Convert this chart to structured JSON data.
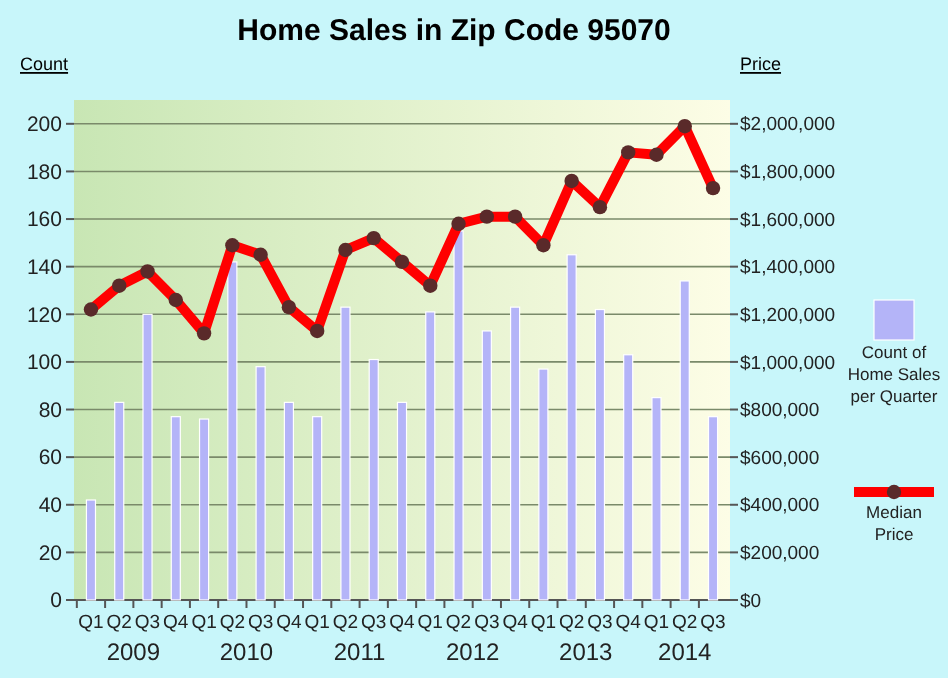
{
  "chart_data": {
    "type": "bar",
    "title": "Home Sales in Zip Code 95070",
    "ylabel": "Count",
    "y2label": "Price",
    "categories": [
      "Q1",
      "Q2",
      "Q3",
      "Q4",
      "Q1",
      "Q2",
      "Q3",
      "Q4",
      "Q1",
      "Q2",
      "Q3",
      "Q4",
      "Q1",
      "Q2",
      "Q3",
      "Q4",
      "Q1",
      "Q2",
      "Q3",
      "Q4",
      "Q1",
      "Q2",
      "Q3"
    ],
    "annotations": [
      "2009",
      "2010",
      "2011",
      "2012",
      "2013",
      "2014"
    ],
    "series": [
      {
        "name": "Count of Home Sales per Quarter",
        "color": "#b4b4f8",
        "values": [
          42,
          83,
          120,
          77,
          76,
          142,
          98,
          83,
          77,
          123,
          101,
          83,
          121,
          155,
          113,
          123,
          97,
          145,
          122,
          103,
          85,
          134,
          77
        ]
      },
      {
        "name": "Median Price",
        "type": "line",
        "axis": "y2",
        "color": "#ff0000",
        "values": [
          1220000,
          1320000,
          1380000,
          1260000,
          1120000,
          1490000,
          1450000,
          1230000,
          1130000,
          1470000,
          1520000,
          1420000,
          1320000,
          1580000,
          1610000,
          1610000,
          1490000,
          1760000,
          1650000,
          1880000,
          1870000,
          1990000,
          1730000
        ]
      }
    ],
    "ylim": [
      0,
      210
    ],
    "yticks": [
      0,
      20,
      40,
      60,
      80,
      100,
      120,
      140,
      160,
      180,
      200
    ],
    "y2lim": [
      0,
      2100000
    ],
    "y2ticks": [
      {
        "value": 0,
        "label": "$0"
      },
      {
        "value": 200000,
        "label": "$200,000"
      },
      {
        "value": 400000,
        "label": "$400,000"
      },
      {
        "value": 600000,
        "label": "$600,000"
      },
      {
        "value": 800000,
        "label": "$800,000"
      },
      {
        "value": 1000000,
        "label": "$1,000,000"
      },
      {
        "value": 1200000,
        "label": "$1,200,000"
      },
      {
        "value": 1400000,
        "label": "$1,400,000"
      },
      {
        "value": 1600000,
        "label": "$1,600,000"
      },
      {
        "value": 1800000,
        "label": "$1,800,000"
      },
      {
        "value": 2000000,
        "label": "$2,000,000"
      }
    ],
    "grid": "y",
    "legend": "right",
    "marker": "circle"
  }
}
